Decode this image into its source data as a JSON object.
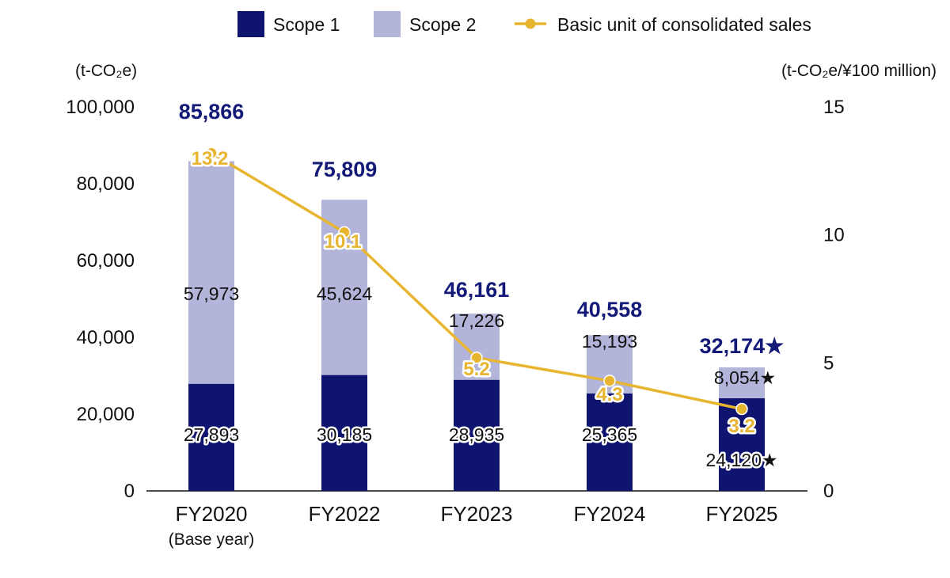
{
  "colors": {
    "scope1": "#0f1470",
    "scope2": "#b3b4d9",
    "line": "#e8b531",
    "total": "#141a78",
    "axis": "#111111"
  },
  "legend": [
    {
      "name": "Scope 1",
      "kind": "box",
      "color": "#0f1470"
    },
    {
      "name": "Scope 2",
      "kind": "box",
      "color": "#b3b4d9"
    },
    {
      "name": "Basic unit of consolidated sales",
      "kind": "line",
      "color": "#e8b531"
    }
  ],
  "chart_data": {
    "type": "bar",
    "stacked": true,
    "title": "",
    "ylabel_left": "(t-CO₂e)",
    "ylabel_right": "(t-CO₂e/¥100 million)",
    "ylim_left": [
      0,
      100000
    ],
    "ylim_right": [
      0,
      15
    ],
    "yticks_left": [
      "0",
      "20,000",
      "40,000",
      "60,000",
      "80,000",
      "100,000"
    ],
    "yticks_left_values": [
      0,
      20000,
      40000,
      60000,
      80000,
      100000
    ],
    "yticks_right": [
      "0",
      "5",
      "10",
      "15"
    ],
    "yticks_right_values": [
      0,
      5,
      10,
      15
    ],
    "categories": [
      "FY2020",
      "FY2022",
      "FY2023",
      "FY2024",
      "FY2025"
    ],
    "category_sublabels": [
      "(Base year)",
      "",
      "",
      "",
      ""
    ],
    "series": [
      {
        "name": "Scope 1",
        "axis": "left",
        "values": [
          27893,
          30185,
          28935,
          25365,
          24120
        ],
        "labels": [
          "27,893",
          "30,185",
          "28,935",
          "25,365",
          "24,120★"
        ]
      },
      {
        "name": "Scope 2",
        "axis": "left",
        "values": [
          57973,
          45624,
          17226,
          15193,
          8054
        ],
        "labels": [
          "57,973",
          "45,624",
          "17,226",
          "15,193",
          "8,054★"
        ]
      },
      {
        "name": "Basic unit of consolidated sales",
        "axis": "right",
        "type": "line",
        "values": [
          13.2,
          10.1,
          5.2,
          4.3,
          3.2
        ],
        "labels": [
          "13.2",
          "10.1",
          "5.2",
          "4.3",
          "3.2"
        ]
      }
    ],
    "totals": [
      85866,
      75809,
      46161,
      40558,
      32174
    ],
    "total_labels": [
      "85,866",
      "75,809",
      "46,161",
      "40,558",
      "32,174★"
    ],
    "grid": false,
    "legend_position": "top"
  }
}
